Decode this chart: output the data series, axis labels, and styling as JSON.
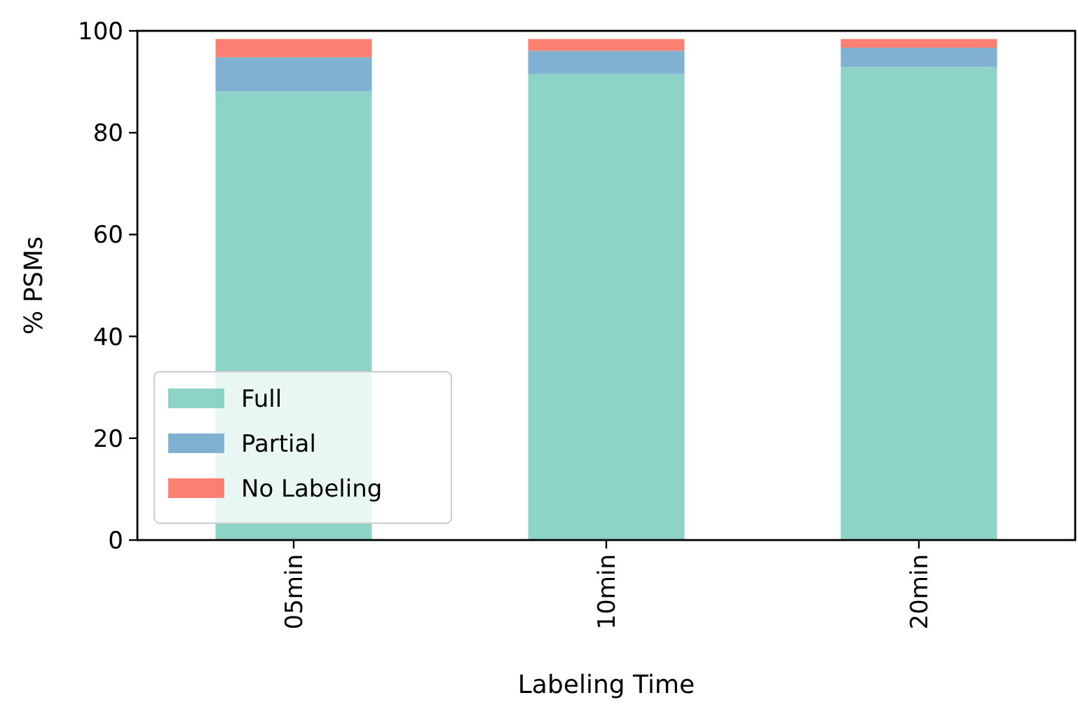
{
  "chart_data": {
    "type": "bar",
    "stacked": true,
    "xlabel": "Labeling Time",
    "ylabel": "% PSMs",
    "categories": [
      "05min",
      "10min",
      "20min"
    ],
    "series": [
      {
        "name": "Full",
        "color": "#8dd3c7",
        "values": [
          88.1,
          91.5,
          92.9
        ]
      },
      {
        "name": "Partial",
        "color": "#80b1d3",
        "values": [
          6.7,
          4.6,
          3.8
        ]
      },
      {
        "name": "No Labeling",
        "color": "#fb8072",
        "values": [
          3.6,
          2.3,
          1.7
        ]
      }
    ],
    "ylim": [
      0,
      100
    ],
    "yticks": [
      0,
      20,
      40,
      60,
      80,
      100
    ],
    "legend": "bottom left"
  }
}
